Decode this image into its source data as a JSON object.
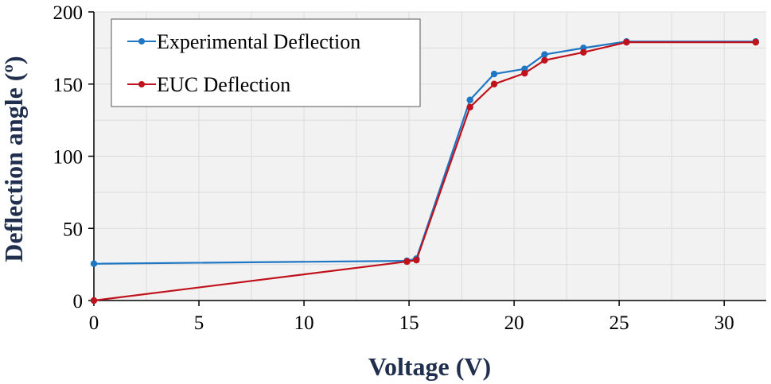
{
  "chart_data": {
    "type": "line",
    "title": "",
    "xlabel": "Voltage (V)",
    "ylabel": "Deflection angle (º)",
    "xlim": [
      0,
      32
    ],
    "ylim": [
      0,
      200
    ],
    "xticks": [
      0,
      5,
      10,
      15,
      20,
      25,
      30
    ],
    "yticks": [
      0,
      50,
      100,
      150,
      200
    ],
    "xtick_labels": [
      "0",
      "5",
      "10",
      "15",
      "20",
      "25",
      "30"
    ],
    "ytick_labels": [
      "0",
      "50",
      "100",
      "150",
      "200"
    ],
    "grid": true,
    "legend_position": "top-left",
    "series": [
      {
        "name": "Experimental Deflection",
        "color": "#1f77c4",
        "x": [
          0,
          14.9,
          15.35,
          17.9,
          19.05,
          20.5,
          21.45,
          23.3,
          25.35,
          31.5
        ],
        "y": [
          25.5,
          27.5,
          29,
          139,
          157,
          160.5,
          170.5,
          175,
          179.5,
          179.5
        ]
      },
      {
        "name": "EUC Deflection",
        "color": "#c0121c",
        "x": [
          0,
          14.9,
          15.35,
          17.9,
          19.05,
          20.5,
          21.45,
          23.3,
          25.35,
          31.5
        ],
        "y": [
          0,
          27,
          28,
          134,
          150,
          157.5,
          166.5,
          172,
          179,
          179
        ]
      }
    ]
  }
}
